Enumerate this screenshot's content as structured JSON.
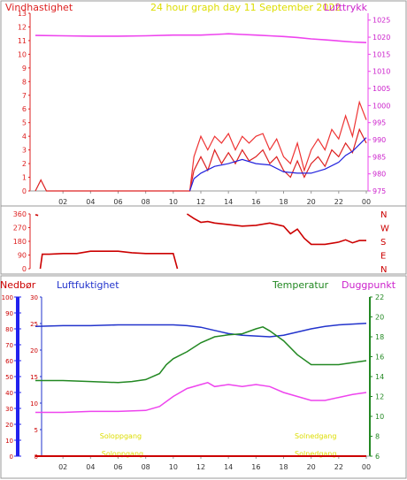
{
  "colors": {
    "wind": "#dd2020",
    "gust": "#ee3333",
    "wind_avg": "#2222dd",
    "pressure": "#ee44ee",
    "dir": "#cc0000",
    "humidity": "#2233cc",
    "temperature": "#228822",
    "dewpoint": "#ee44ee",
    "precip": "#cc0000",
    "precip_axis": "#2222ee",
    "sun": "#dddd00"
  },
  "x_ticks": [
    "02",
    "04",
    "06",
    "08",
    "10",
    "12",
    "14",
    "16",
    "18",
    "20",
    "22",
    "00"
  ],
  "chart_data": [
    {
      "type": "line",
      "title": "24 hour graph day   11 September 2022",
      "left_label": "Vindhastighet",
      "right_label": "Lufttrykk",
      "left_ticks": [
        "0",
        "1",
        "2",
        "3",
        "4",
        "5",
        "6",
        "7",
        "8",
        "9",
        "10",
        "11",
        "12",
        "13"
      ],
      "right_ticks": [
        "975",
        "980",
        "985",
        "990",
        "995",
        "1000",
        "1005",
        "1010",
        "1015",
        "1020",
        "1025"
      ],
      "ylim_left": [
        0,
        13
      ],
      "ylim_right": [
        975,
        1027
      ],
      "x_range_hours": [
        0,
        24
      ],
      "series": [
        {
          "key": "pressure",
          "axis": "right",
          "x": [
            0,
            2,
            4,
            6,
            8,
            10,
            12,
            13,
            14,
            15,
            16,
            17,
            18,
            19,
            20,
            21,
            22,
            23,
            24
          ],
          "y": [
            1020.5,
            1020.4,
            1020.3,
            1020.3,
            1020.4,
            1020.6,
            1020.6,
            1020.8,
            1021.0,
            1020.8,
            1020.6,
            1020.4,
            1020.2,
            1019.9,
            1019.5,
            1019.2,
            1018.9,
            1018.6,
            1018.4
          ]
        },
        {
          "key": "wind",
          "x": [
            0,
            0.4,
            0.8,
            1,
            2,
            4,
            6,
            8,
            10,
            11.2,
            11.5,
            12,
            12.5,
            13,
            13.5,
            14,
            14.5,
            15,
            15.5,
            16,
            16.5,
            17,
            17.5,
            18,
            18.5,
            19,
            19.5,
            20,
            20.5,
            21,
            21.5,
            22,
            22.5,
            23,
            23.5,
            24
          ],
          "y": [
            0,
            0.8,
            0,
            0,
            0,
            0,
            0,
            0,
            0,
            0,
            1.5,
            2.5,
            1.5,
            3,
            2,
            2.8,
            2,
            3,
            2.2,
            2.5,
            3,
            2,
            2.5,
            1.5,
            1,
            2.2,
            1,
            2,
            2.5,
            1.8,
            3,
            2.5,
            3.5,
            2.8,
            4.5,
            3.5
          ]
        },
        {
          "key": "gust",
          "x": [
            11.2,
            11.5,
            12,
            12.5,
            13,
            13.5,
            14,
            14.5,
            15,
            15.5,
            16,
            16.5,
            17,
            17.5,
            18,
            18.5,
            19,
            19.5,
            20,
            20.5,
            21,
            21.5,
            22,
            22.5,
            23,
            23.5,
            24
          ],
          "y": [
            0,
            2.5,
            4,
            3,
            4,
            3.5,
            4.2,
            3,
            4,
            3.5,
            4,
            4.2,
            3,
            3.8,
            2.5,
            2,
            3.5,
            1.5,
            3,
            3.8,
            3,
            4.5,
            3.8,
            5.5,
            4,
            6.5,
            5.2
          ]
        },
        {
          "key": "wind_avg",
          "x": [
            11.2,
            11.5,
            12,
            13,
            14,
            15,
            16,
            17,
            18,
            19,
            20,
            21,
            22,
            22.5,
            23,
            23.5,
            24
          ],
          "y": [
            0,
            0.9,
            1.3,
            1.8,
            2.0,
            2.3,
            2.0,
            1.9,
            1.4,
            1.3,
            1.3,
            1.6,
            2.1,
            2.6,
            2.9,
            3.4,
            3.9
          ]
        }
      ]
    },
    {
      "type": "scatter",
      "left_ticks": [
        "0",
        "90",
        "180",
        "270",
        "360"
      ],
      "right_ticks": [
        "N",
        "E",
        "S",
        "W",
        "N"
      ],
      "ylim": [
        0,
        360
      ],
      "series": [
        {
          "key": "wind_direction",
          "x": [
            0,
            0.2,
            0.35,
            0.5,
            1,
            2,
            3,
            4,
            5,
            6,
            7,
            8,
            9,
            10,
            10.3,
            11,
            11.5,
            12,
            12.5,
            13,
            14,
            15,
            16,
            17,
            18,
            18.5,
            19,
            19.5,
            20,
            21,
            22,
            22.5,
            23,
            23.5,
            24
          ],
          "y": [
            355,
            350,
            0,
            95,
            95,
            100,
            100,
            115,
            115,
            115,
            105,
            100,
            100,
            100,
            0,
            360,
            330,
            305,
            310,
            300,
            290,
            280,
            285,
            300,
            280,
            230,
            260,
            200,
            160,
            160,
            175,
            190,
            170,
            185,
            185
          ]
        }
      ]
    },
    {
      "type": "line",
      "left_labels": [
        "Nedbør",
        "Luftfuktighet"
      ],
      "right_labels": [
        "Temperatur",
        "Duggpunkt"
      ],
      "precip_ticks": [
        "0",
        "10",
        "20",
        "30",
        "40",
        "50",
        "60",
        "70",
        "80",
        "90",
        "100"
      ],
      "humidity_ticks": [
        "0",
        "5",
        "10",
        "15",
        "20",
        "25",
        "30"
      ],
      "temp_ticks": [
        "6",
        "8",
        "10",
        "12",
        "14",
        "16",
        "18",
        "20",
        "22"
      ],
      "ylim_precip": [
        0,
        100
      ],
      "ylim_temp": [
        6,
        22
      ],
      "sun_labels": [
        {
          "text": "Soloppgang",
          "hour": 7.6
        },
        {
          "text": "Solnedgang",
          "hour": 19.3
        },
        {
          "text": "Soloppgang",
          "hour": 7.6
        },
        {
          "text": "Solnedgang",
          "hour": 19.3
        }
      ],
      "series": [
        {
          "key": "humidity",
          "axis": "precip",
          "x": [
            0,
            2,
            4,
            6,
            8,
            10,
            11,
            12,
            13,
            14,
            15,
            16,
            17,
            18,
            19,
            20,
            21,
            22,
            23,
            24
          ],
          "y": [
            81.5,
            82,
            82,
            82.5,
            82.5,
            82.5,
            82,
            81,
            79,
            77,
            76,
            75.5,
            75,
            76,
            78,
            80,
            81.5,
            82.5,
            83,
            83.5
          ]
        },
        {
          "key": "temperature",
          "axis": "temp",
          "x": [
            0,
            2,
            4,
            6,
            7,
            8,
            9,
            9.5,
            10,
            11,
            12,
            13,
            14,
            15,
            16,
            16.5,
            17,
            18,
            19,
            20,
            21,
            22,
            23,
            24
          ],
          "y": [
            13.6,
            13.6,
            13.5,
            13.4,
            13.5,
            13.7,
            14.3,
            15.2,
            15.8,
            16.5,
            17.4,
            18.0,
            18.2,
            18.3,
            18.8,
            19.0,
            18.6,
            17.6,
            16.2,
            15.2,
            15.2,
            15.2,
            15.4,
            15.6
          ]
        },
        {
          "key": "dewpoint",
          "axis": "temp",
          "x": [
            0,
            2,
            4,
            6,
            8,
            9,
            10,
            11,
            12,
            12.5,
            13,
            14,
            15,
            16,
            17,
            18,
            19,
            20,
            21,
            22,
            23,
            24
          ],
          "y": [
            10.4,
            10.4,
            10.5,
            10.5,
            10.6,
            11.0,
            12.0,
            12.8,
            13.2,
            13.4,
            13.0,
            13.2,
            13.0,
            13.2,
            13.0,
            12.4,
            12.0,
            11.6,
            11.6,
            11.9,
            12.2,
            12.4
          ]
        },
        {
          "key": "precip",
          "axis": "precip",
          "x": [
            0,
            24
          ],
          "y": [
            0,
            0
          ]
        }
      ]
    }
  ]
}
